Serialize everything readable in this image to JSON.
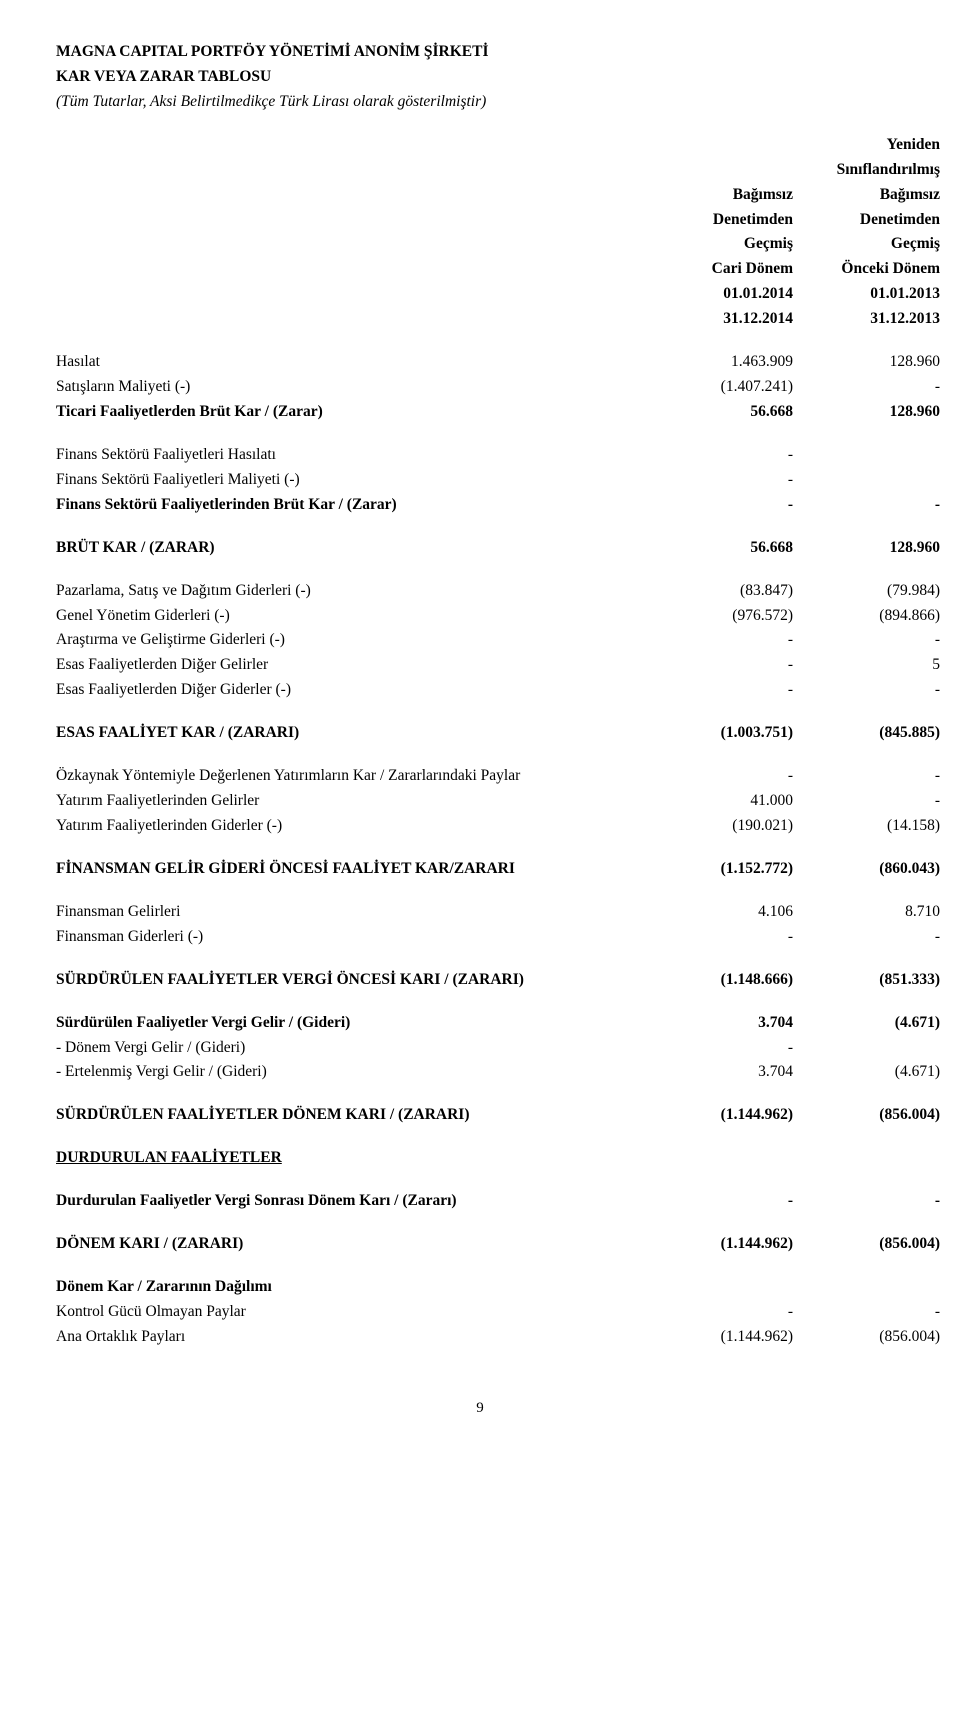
{
  "header": {
    "company": "MAGNA CAPITAL PORTFÖY YÖNETİMİ ANONİM ŞİRKETİ",
    "title": "KAR VEYA ZARAR TABLOSU",
    "subtitle": "(Tüm Tutarlar, Aksi Belirtilmedikçe Türk Lirası olarak gösterilmiştir)"
  },
  "cols": {
    "yeniden": "Yeniden",
    "siniflandirilmis": "Sınıflandırılmış",
    "bagimsiz1": "Bağımsız",
    "bagimsiz2": "Bağımsız",
    "denetimden1": "Denetimden",
    "denetimden2": "Denetimden",
    "gecmis1": "Geçmiş",
    "gecmis2": "Geçmiş",
    "cari": "Cari Dönem",
    "onceki": "Önceki Dönem",
    "d1a": "01.01.2014",
    "d2a": "01.01.2013",
    "d1b": "31.12.2014",
    "d2b": "31.12.2013"
  },
  "rows": {
    "hasilat": {
      "l": "Hasılat",
      "v1": "1.463.909",
      "v2": "128.960"
    },
    "satis": {
      "l": "Satışların Maliyeti (-)",
      "v1": "(1.407.241)",
      "v2": "-"
    },
    "ticari": {
      "l": "Ticari Faaliyetlerden Brüt Kar / (Zarar)",
      "v1": "56.668",
      "v2": "128.960"
    },
    "fs_hasilat": {
      "l": "Finans Sektörü Faaliyetleri Hasılatı",
      "v1": "-",
      "v2": ""
    },
    "fs_maliyet": {
      "l": "Finans Sektörü Faaliyetleri Maliyeti (-)",
      "v1": "-",
      "v2": ""
    },
    "fs_brut": {
      "l": "Finans Sektörü Faaliyetlerinden Brüt Kar / (Zarar)",
      "v1": "-",
      "v2": "-"
    },
    "brut": {
      "l": "BRÜT KAR / (ZARAR)",
      "v1": "56.668",
      "v2": "128.960"
    },
    "pazarlama": {
      "l": "Pazarlama, Satış ve Dağıtım Giderleri (-)",
      "v1": "(83.847)",
      "v2": "(79.984)"
    },
    "genel": {
      "l": "Genel Yönetim Giderleri (-)",
      "v1": "(976.572)",
      "v2": "(894.866)"
    },
    "arastirma": {
      "l": "Araştırma ve Geliştirme Giderleri (-)",
      "v1": "-",
      "v2": "-"
    },
    "esas_gelir": {
      "l": "Esas Faaliyetlerden Diğer Gelirler",
      "v1": "-",
      "v2": "5"
    },
    "esas_gider": {
      "l": "Esas Faaliyetlerden Diğer Giderler (-)",
      "v1": "-",
      "v2": "-"
    },
    "esas_faal": {
      "l": "ESAS FAALİYET KAR / (ZARARI)",
      "v1": "(1.003.751)",
      "v2": "(845.885)"
    },
    "ozkaynak": {
      "l": "Özkaynak Yöntemiyle Değerlenen Yatırımların Kar / Zararlarındaki Paylar",
      "v1": "-",
      "v2": "-"
    },
    "yat_gelir": {
      "l": "Yatırım Faaliyetlerinden Gelirler",
      "v1": "41.000",
      "v2": "-"
    },
    "yat_gider": {
      "l": "Yatırım Faaliyetlerinden Giderler (-)",
      "v1": "(190.021)",
      "v2": "(14.158)"
    },
    "finansman": {
      "l": "FİNANSMAN GELİR GİDERİ ÖNCESİ FAALİYET KAR/ZARARI",
      "v1": "(1.152.772)",
      "v2": "(860.043)"
    },
    "fin_gelir": {
      "l": "Finansman Gelirleri",
      "v1": "4.106",
      "v2": "8.710"
    },
    "fin_gider": {
      "l": "Finansman Giderleri (-)",
      "v1": "-",
      "v2": "-"
    },
    "surdurulen_vo": {
      "l": "SÜRDÜRÜLEN FAALİYETLER VERGİ ÖNCESİ KARI / (ZARARI)",
      "v1": "(1.148.666)",
      "v2": "(851.333)"
    },
    "vergi_gg": {
      "l": "Sürdürülen Faaliyetler Vergi Gelir / (Gideri)",
      "v1": "3.704",
      "v2": "(4.671)"
    },
    "donem_vergi": {
      "l": " - Dönem Vergi Gelir / (Gideri)",
      "v1": "-",
      "v2": ""
    },
    "ertelenmis": {
      "l": " - Ertelenmiş Vergi Gelir / (Gideri)",
      "v1": "3.704",
      "v2": "(4.671)"
    },
    "surdurulen_donem": {
      "l": "SÜRDÜRÜLEN FAALİYETLER DÖNEM KARI / (ZARARI)",
      "v1": "(1.144.962)",
      "v2": "(856.004)"
    },
    "durdurulan": {
      "l": "DURDURULAN FAALİYETLER"
    },
    "durd_sonrasi": {
      "l": "Durdurulan Faaliyetler Vergi Sonrası Dönem Karı / (Zararı)",
      "v1": "-",
      "v2": "-"
    },
    "donem_kari": {
      "l": "DÖNEM KARI / (ZARARI)",
      "v1": "(1.144.962)",
      "v2": "(856.004)"
    },
    "dagilim": {
      "l": "Dönem Kar / Zararının Dağılımı"
    },
    "kontrol": {
      "l": "Kontrol Gücü Olmayan Paylar",
      "v1": "-",
      "v2": "-"
    },
    "ana": {
      "l": "Ana Ortaklık Payları",
      "v1": "(1.144.962)",
      "v2": "(856.004)"
    }
  },
  "pagenum": "9"
}
